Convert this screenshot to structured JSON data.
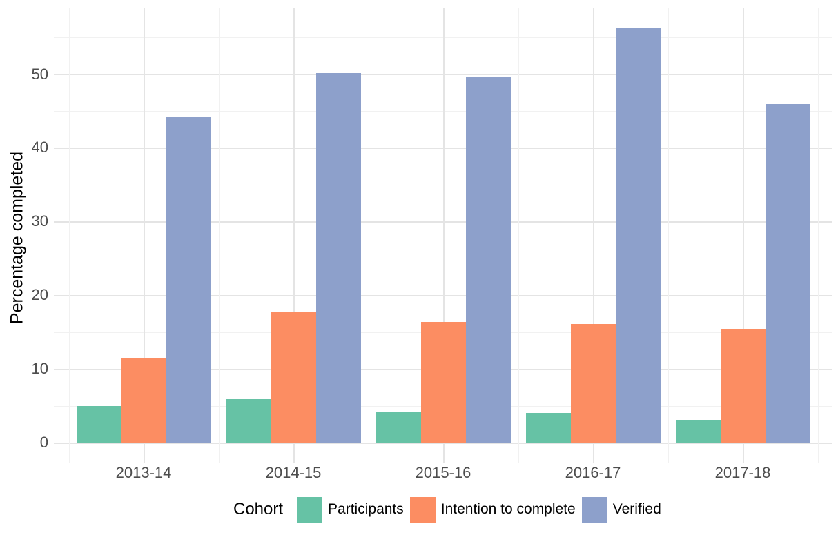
{
  "chart_data": {
    "type": "bar",
    "title": "",
    "categories": [
      "2013-14",
      "2014-15",
      "2015-16",
      "2016-17",
      "2017-18"
    ],
    "series": [
      {
        "name": "Participants",
        "color": "#66C2A5",
        "values": [
          5.0,
          5.9,
          4.1,
          4.0,
          3.1
        ]
      },
      {
        "name": "Intention to complete",
        "color": "#FC8D62",
        "values": [
          11.5,
          17.7,
          16.4,
          16.1,
          15.4
        ]
      },
      {
        "name": "Verified",
        "color": "#8DA0CB",
        "values": [
          44.2,
          50.1,
          49.6,
          56.2,
          45.9
        ]
      }
    ],
    "xlabel": "",
    "ylabel": "Percentage completed",
    "ylim": [
      0,
      59
    ],
    "yticks": [
      0,
      10,
      20,
      30,
      40,
      50
    ],
    "yticks_minor": [
      5,
      15,
      25,
      35,
      45,
      55
    ],
    "legend_title": "Cohort",
    "legend_position": "bottom",
    "grid": "major+minor",
    "bar_layout": "grouped",
    "colors": {
      "background": "#FFFFFF",
      "grid_major": "#E4E4E4",
      "grid_minor": "#F1F1F1",
      "axis_text": "#4D4D4D",
      "title_text": "#000000"
    }
  }
}
